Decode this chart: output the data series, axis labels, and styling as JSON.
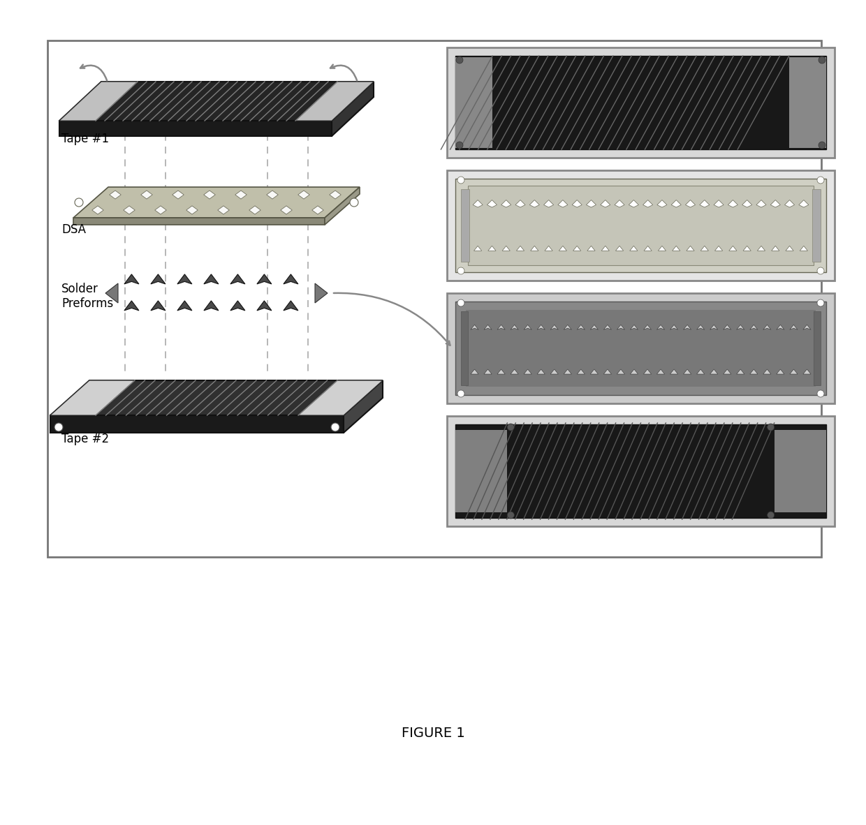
{
  "title": "FIGURE 1",
  "title_fontsize": 14,
  "background_color": "#ffffff",
  "labels": {
    "tape1": "Tape #1",
    "dsa": "DSA",
    "solder": "Solder\nPreforms",
    "tape2": "Tape #2"
  },
  "label_fontsize": 12,
  "colors": {
    "tape1_dark": "#252525",
    "tape1_end": "#b8b8b8",
    "tape1_side": "#1a1a1a",
    "dsa_top": "#c0bfaa",
    "dsa_side": "#8a8978",
    "tape2_dark": "#303030",
    "tape2_end": "#c5c5c5",
    "tape2_side": "#1a1a1a",
    "solder_dark": "#4a4a4a",
    "outer_box_edge": "#888888",
    "panel_frame": "#aaaaaa",
    "dashed": "#aaaaaa"
  }
}
